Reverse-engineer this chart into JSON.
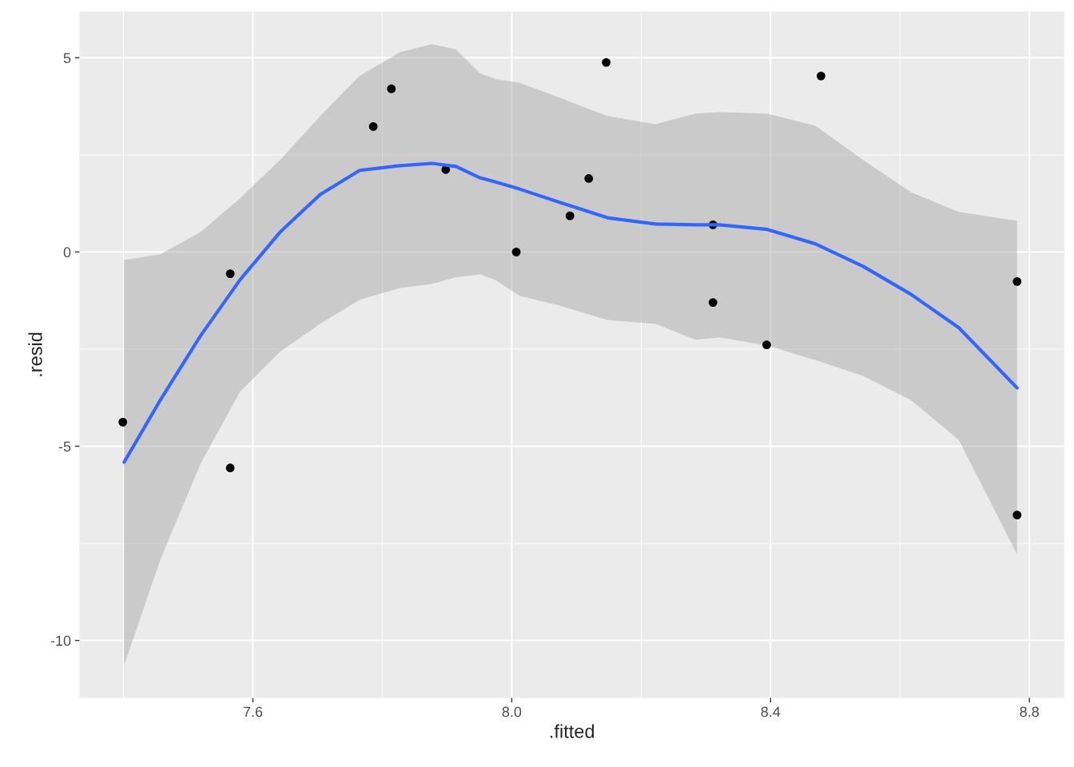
{
  "chart_data": {
    "type": "scatter",
    "xlabel": ".fitted",
    "ylabel": ".resid",
    "xlim": [
      7.332,
      8.854
    ],
    "ylim": [
      -11.48,
      6.19
    ],
    "xticks": [
      {
        "value": 7.6,
        "label": "7.6"
      },
      {
        "value": 8.0,
        "label": "8.0"
      },
      {
        "value": 8.4,
        "label": "8.4"
      },
      {
        "value": 8.8,
        "label": "8.8"
      }
    ],
    "yticks": [
      -10,
      -5,
      0,
      5
    ],
    "grid": true,
    "legend": false,
    "marker": "circle",
    "series": [
      {
        "color": "#000000",
        "x": [
          7.399,
          7.565,
          7.565,
          7.786,
          7.814,
          7.898,
          8.007,
          8.09,
          8.119,
          8.146,
          8.311,
          8.311,
          8.394,
          8.478,
          8.781,
          8.781
        ],
        "values": [
          -4.38,
          -0.56,
          -5.56,
          3.23,
          4.2,
          2.12,
          0.0,
          0.93,
          1.89,
          4.88,
          0.7,
          -1.3,
          -2.39,
          4.53,
          -0.76,
          -6.77
        ]
      },
      {
        "type": "line",
        "color": "#3366ff",
        "line_style": "solid",
        "marker": "none",
        "x": [
          7.401,
          7.457,
          7.519,
          7.58,
          7.642,
          7.704,
          7.765,
          7.827,
          7.877,
          7.914,
          7.951,
          7.975,
          8.012,
          8.074,
          8.148,
          8.222,
          8.284,
          8.321,
          8.395,
          8.469,
          8.543,
          8.617,
          8.691,
          8.781
        ],
        "values": [
          -5.41,
          -3.81,
          -2.16,
          -0.72,
          0.51,
          1.48,
          2.1,
          2.22,
          2.28,
          2.2,
          1.91,
          1.8,
          1.62,
          1.28,
          0.88,
          0.72,
          0.7,
          0.7,
          0.58,
          0.21,
          -0.37,
          -1.09,
          -1.95,
          -3.5
        ],
        "upper": [
          -0.21,
          -0.06,
          0.51,
          1.38,
          2.37,
          3.5,
          4.53,
          5.14,
          5.35,
          5.21,
          4.6,
          4.45,
          4.36,
          3.97,
          3.5,
          3.29,
          3.56,
          3.6,
          3.56,
          3.25,
          2.37,
          1.54,
          1.03,
          0.8
        ],
        "lower": [
          -10.64,
          -7.92,
          -5.45,
          -3.6,
          -2.57,
          -1.85,
          -1.23,
          -0.93,
          -0.82,
          -0.65,
          -0.58,
          -0.72,
          -1.13,
          -1.38,
          -1.75,
          -1.85,
          -2.26,
          -2.2,
          -2.41,
          -2.78,
          -3.19,
          -3.81,
          -4.84,
          -7.78
        ]
      }
    ]
  }
}
